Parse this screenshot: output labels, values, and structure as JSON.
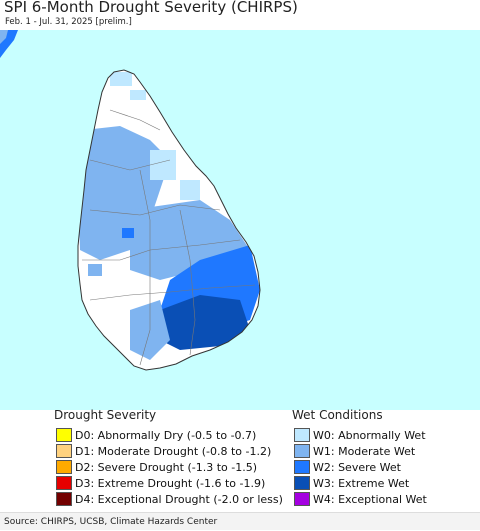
{
  "title": "SPI 6-Month Drought Severity (CHIRPS)",
  "subtitle": "Feb. 1 - Jul. 31, 2025 [prelim.]",
  "legend": {
    "drought": {
      "heading": "Drought Severity",
      "items": [
        {
          "label": "D0: Abnormally Dry (-0.5 to -0.7)",
          "color": "#ffff00"
        },
        {
          "label": "D1: Moderate Drought (-0.8 to -1.2)",
          "color": "#ffd27f"
        },
        {
          "label": "D2: Severe Drought (-1.3 to -1.5)",
          "color": "#ffaa00"
        },
        {
          "label": "D3: Extreme Drought (-1.6 to -1.9)",
          "color": "#e60000"
        },
        {
          "label": "D4: Exceptional Drought (-2.0 or less)",
          "color": "#730000"
        }
      ]
    },
    "wet": {
      "heading": "Wet Conditions",
      "items": [
        {
          "label": "W0: Abnormally Wet",
          "color": "#bfe8ff"
        },
        {
          "label": "W1: Moderate Wet",
          "color": "#7fb4f0"
        },
        {
          "label": "W2: Severe Wet",
          "color": "#1f78ff"
        },
        {
          "label": "W3: Extreme Wet",
          "color": "#0a4fb5"
        },
        {
          "label": "W4: Exceptional Wet",
          "color": "#a400e0"
        }
      ]
    }
  },
  "source": "Source: CHIRPS, UCSB, Climate Hazards Center",
  "colors": {
    "ocean": "#c8ffff",
    "land_normal": "#ffffff",
    "boundary": "#888888"
  }
}
